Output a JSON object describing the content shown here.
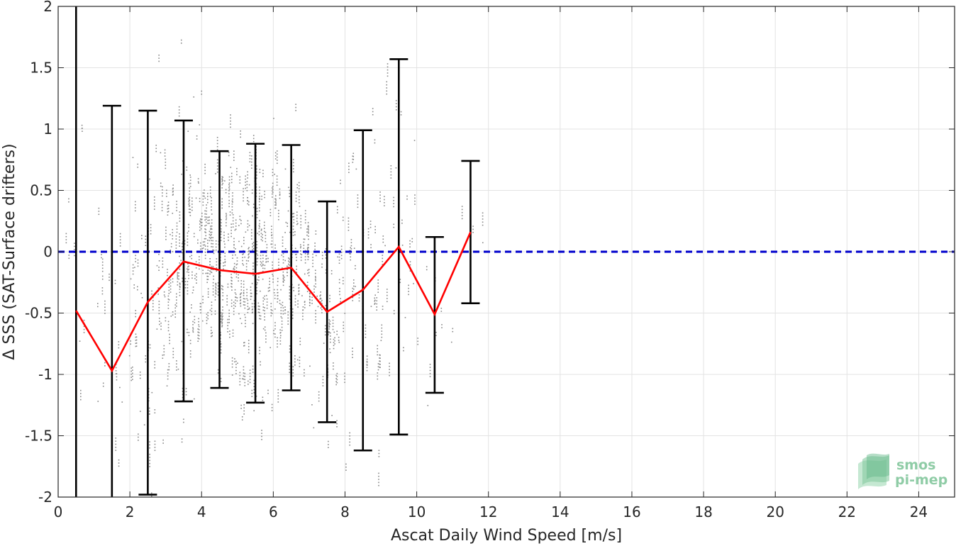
{
  "chart_data": {
    "type": "line",
    "xlabel": "Ascat Daily Wind Speed [m/s]",
    "ylabel": "Δ SSS (SAT-Surface drifters)",
    "xlim": [
      0,
      25
    ],
    "ylim": [
      -2,
      2
    ],
    "xticks": [
      0,
      2,
      4,
      6,
      8,
      10,
      12,
      14,
      16,
      18,
      20,
      22,
      24
    ],
    "yticks": [
      -2,
      -1.5,
      -1,
      -0.5,
      0,
      0.5,
      1,
      1.5,
      2
    ],
    "grid": true,
    "series": [
      {
        "kind": "mean-line",
        "color": "#ff0000",
        "x": [
          0.5,
          1.5,
          2.5,
          3.5,
          4.5,
          5.5,
          6.5,
          7.5,
          8.5,
          9.5,
          10.5,
          11.5
        ],
        "y": [
          -0.48,
          -0.97,
          -0.41,
          -0.08,
          -0.15,
          -0.18,
          -0.13,
          -0.49,
          -0.31,
          0.04,
          -0.51,
          0.16
        ]
      },
      {
        "kind": "errorbars",
        "color": "#000000",
        "x": [
          0.5,
          1.5,
          2.5,
          3.5,
          4.5,
          5.5,
          6.5,
          7.5,
          8.5,
          9.5,
          10.5,
          11.5
        ],
        "lower": [
          -2.0,
          -2.0,
          -1.98,
          -1.22,
          -1.11,
          -1.23,
          -1.13,
          -1.39,
          -1.62,
          -1.49,
          -1.15,
          -0.42
        ],
        "upper": [
          2.0,
          1.19,
          1.15,
          1.07,
          0.82,
          0.88,
          0.87,
          0.41,
          0.99,
          1.57,
          0.12,
          0.74
        ]
      },
      {
        "kind": "reference",
        "color": "#0000cc",
        "y": 0
      },
      {
        "kind": "scatter",
        "color": "#888888",
        "x_range": [
          0.2,
          12.0
        ],
        "y_range": [
          -2,
          2
        ]
      }
    ],
    "logo": {
      "line1": "smos",
      "line2": "pi-mep"
    }
  }
}
